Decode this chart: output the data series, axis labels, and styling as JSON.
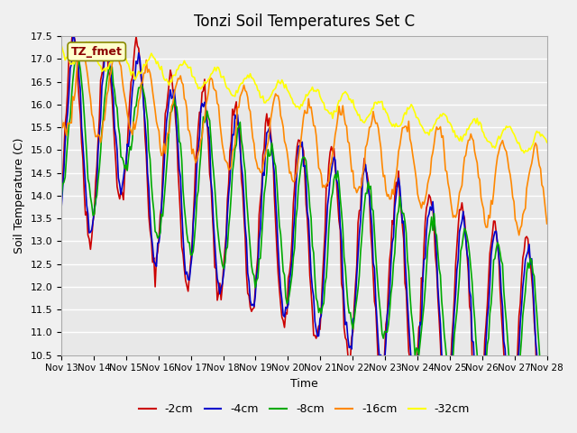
{
  "title": "Tonzi Soil Temperatures Set C",
  "xlabel": "Time",
  "ylabel": "Soil Temperature (C)",
  "ylim": [
    10.5,
    17.5
  ],
  "label_box": "TZ_fmet",
  "x_tick_labels": [
    "Nov 13",
    "Nov 14",
    "Nov 15",
    "Nov 16",
    "Nov 17",
    "Nov 18",
    "Nov 19",
    "Nov 20",
    "Nov 21",
    "Nov 22",
    "Nov 23",
    "Nov 24",
    "Nov 25",
    "Nov 26",
    "Nov 27",
    "Nov 28"
  ],
  "series": {
    "-2cm": {
      "color": "#cc0000"
    },
    "-4cm": {
      "color": "#0000cc"
    },
    "-8cm": {
      "color": "#00aa00"
    },
    "-16cm": {
      "color": "#ff8800"
    },
    "-32cm": {
      "color": "#ffff00"
    }
  },
  "fig_bg_color": "#f0f0f0",
  "plot_bg": "#e8e8e8",
  "grid_color": "#ffffff",
  "yticks": [
    10.5,
    11.0,
    11.5,
    12.0,
    12.5,
    13.0,
    13.5,
    14.0,
    14.5,
    15.0,
    15.5,
    16.0,
    16.5,
    17.0,
    17.5
  ]
}
